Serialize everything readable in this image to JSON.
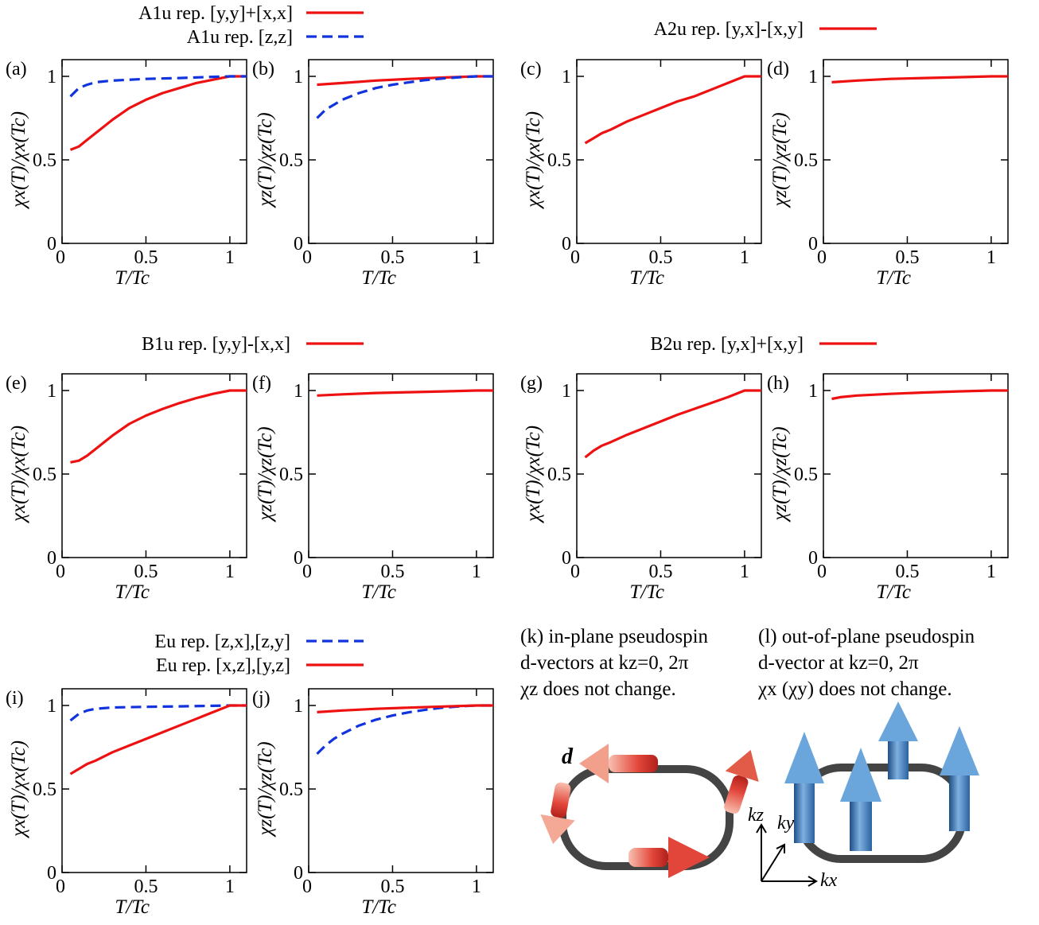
{
  "legend_groups": [
    {
      "entries": [
        {
          "text": "A1u rep. [y,y]+[x,x]",
          "color": "#ee1111",
          "dash": false
        },
        {
          "text": "A1u rep. [z,z]",
          "color": "#1133dd",
          "dash": true
        }
      ]
    },
    {
      "entries": [
        {
          "text": "A2u rep. [y,x]-[x,y]",
          "color": "#ee1111",
          "dash": false
        }
      ]
    },
    {
      "entries": [
        {
          "text": "B1u rep. [y,y]-[x,x]",
          "color": "#ee1111",
          "dash": false
        }
      ]
    },
    {
      "entries": [
        {
          "text": "B2u rep. [y,x]+[x,y]",
          "color": "#ee1111",
          "dash": false
        }
      ]
    },
    {
      "entries": [
        {
          "text": "Eu rep. [z,x],[z,y]",
          "color": "#1133dd",
          "dash": true
        },
        {
          "text": "Eu rep. [x,z],[y,z]",
          "color": "#ee1111",
          "dash": false
        }
      ]
    }
  ],
  "axis_text": {
    "x_label": "T/Tc",
    "y_label_x": "χx(T)/χx(Tc)",
    "y_label_z": "χz(T)/χz(Tc)",
    "x_ticks": [
      "0",
      "0.5",
      "1"
    ],
    "y_ticks": [
      "0",
      "0.5",
      "1"
    ]
  },
  "notes": {
    "k": [
      "(k) in-plane pseudospin",
      "d-vectors at kz=0, 2π",
      "χz does not change."
    ],
    "l": [
      "(l) out-of-plane pseudospin",
      "d-vector at kz=0, 2π",
      "χx (χy) does not change."
    ],
    "d_label": "d",
    "axis_kx": "kx",
    "axis_ky": "ky",
    "axis_kz": "kz"
  },
  "colors": {
    "red": "#ee1111",
    "blue": "#1133dd",
    "ring": "#444444",
    "arrow_red": "#e2463a",
    "arrow_blue": "#4a86c4"
  },
  "chart_data": [
    {
      "panel": "(a)",
      "type": "line",
      "ylabel": "χx(T)/χx(Tc)",
      "xlabel": "T/Tc",
      "xlim": [
        0,
        1.1
      ],
      "ylim": [
        0,
        1.1
      ],
      "series": [
        {
          "name": "A1u rep. [y,y]+[x,x]",
          "color": "red",
          "dash": false,
          "x": [
            0.05,
            0.1,
            0.15,
            0.2,
            0.3,
            0.4,
            0.5,
            0.6,
            0.7,
            0.8,
            0.9,
            1.0,
            1.1
          ],
          "y": [
            0.56,
            0.58,
            0.62,
            0.66,
            0.74,
            0.81,
            0.86,
            0.9,
            0.93,
            0.96,
            0.98,
            1.0,
            1.0
          ]
        },
        {
          "name": "A1u rep. [z,z]",
          "color": "blue",
          "dash": true,
          "x": [
            0.05,
            0.1,
            0.15,
            0.2,
            0.3,
            0.5,
            0.7,
            0.9,
            1.0,
            1.1
          ],
          "y": [
            0.88,
            0.93,
            0.95,
            0.965,
            0.975,
            0.985,
            0.99,
            0.997,
            1.0,
            1.0
          ]
        }
      ]
    },
    {
      "panel": "(b)",
      "type": "line",
      "ylabel": "χz(T)/χz(Tc)",
      "xlabel": "T/Tc",
      "xlim": [
        0,
        1.1
      ],
      "ylim": [
        0,
        1.1
      ],
      "series": [
        {
          "name": "A1u rep. [y,y]+[x,x]",
          "color": "red",
          "dash": false,
          "x": [
            0.05,
            0.2,
            0.4,
            0.6,
            0.8,
            1.0,
            1.1
          ],
          "y": [
            0.95,
            0.96,
            0.975,
            0.985,
            0.993,
            1.0,
            1.0
          ]
        },
        {
          "name": "A1u rep. [z,z]",
          "color": "blue",
          "dash": true,
          "x": [
            0.05,
            0.1,
            0.15,
            0.2,
            0.3,
            0.4,
            0.5,
            0.6,
            0.7,
            0.8,
            0.9,
            1.0,
            1.1
          ],
          "y": [
            0.75,
            0.8,
            0.83,
            0.86,
            0.9,
            0.93,
            0.95,
            0.965,
            0.978,
            0.987,
            0.995,
            1.0,
            1.0
          ]
        }
      ]
    },
    {
      "panel": "(c)",
      "type": "line",
      "ylabel": "χx(T)/χx(Tc)",
      "xlabel": "T/Tc",
      "xlim": [
        0,
        1.1
      ],
      "ylim": [
        0,
        1.1
      ],
      "series": [
        {
          "name": "A2u rep. [y,x]-[x,y]",
          "color": "red",
          "dash": false,
          "x": [
            0.05,
            0.1,
            0.15,
            0.2,
            0.3,
            0.4,
            0.5,
            0.6,
            0.7,
            0.8,
            0.9,
            1.0,
            1.1
          ],
          "y": [
            0.6,
            0.63,
            0.66,
            0.68,
            0.73,
            0.77,
            0.81,
            0.85,
            0.88,
            0.92,
            0.96,
            1.0,
            1.0
          ]
        }
      ]
    },
    {
      "panel": "(d)",
      "type": "line",
      "ylabel": "χz(T)/χz(Tc)",
      "xlabel": "T/Tc",
      "xlim": [
        0,
        1.1
      ],
      "ylim": [
        0,
        1.1
      ],
      "series": [
        {
          "name": "A2u rep. [y,x]-[x,y]",
          "color": "red",
          "dash": false,
          "x": [
            0.05,
            0.2,
            0.4,
            0.6,
            0.8,
            1.0,
            1.1
          ],
          "y": [
            0.965,
            0.975,
            0.985,
            0.99,
            0.995,
            1.0,
            1.0
          ]
        }
      ]
    },
    {
      "panel": "(e)",
      "type": "line",
      "ylabel": "χx(T)/χx(Tc)",
      "xlabel": "T/Tc",
      "xlim": [
        0,
        1.1
      ],
      "ylim": [
        0,
        1.1
      ],
      "series": [
        {
          "name": "B1u rep. [y,y]-[x,x]",
          "color": "red",
          "dash": false,
          "x": [
            0.05,
            0.1,
            0.15,
            0.2,
            0.3,
            0.4,
            0.5,
            0.6,
            0.7,
            0.8,
            0.9,
            1.0,
            1.1
          ],
          "y": [
            0.57,
            0.58,
            0.61,
            0.65,
            0.73,
            0.8,
            0.85,
            0.89,
            0.925,
            0.955,
            0.98,
            1.0,
            1.0
          ]
        }
      ]
    },
    {
      "panel": "(f)",
      "type": "line",
      "ylabel": "χz(T)/χz(Tc)",
      "xlabel": "T/Tc",
      "xlim": [
        0,
        1.1
      ],
      "ylim": [
        0,
        1.1
      ],
      "series": [
        {
          "name": "B1u rep. [y,y]-[x,x]",
          "color": "red",
          "dash": false,
          "x": [
            0.05,
            0.2,
            0.4,
            0.6,
            0.8,
            1.0,
            1.1
          ],
          "y": [
            0.97,
            0.977,
            0.985,
            0.99,
            0.995,
            1.0,
            1.0
          ]
        }
      ]
    },
    {
      "panel": "(g)",
      "type": "line",
      "ylabel": "χx(T)/χx(Tc)",
      "xlabel": "T/Tc",
      "xlim": [
        0,
        1.1
      ],
      "ylim": [
        0,
        1.1
      ],
      "series": [
        {
          "name": "B2u rep. [y,x]+[x,y]",
          "color": "red",
          "dash": false,
          "x": [
            0.05,
            0.1,
            0.15,
            0.2,
            0.3,
            0.4,
            0.5,
            0.6,
            0.7,
            0.8,
            0.9,
            1.0,
            1.1
          ],
          "y": [
            0.6,
            0.64,
            0.67,
            0.69,
            0.735,
            0.775,
            0.815,
            0.855,
            0.89,
            0.925,
            0.96,
            1.0,
            1.0
          ]
        }
      ]
    },
    {
      "panel": "(h)",
      "type": "line",
      "ylabel": "χz(T)/χz(Tc)",
      "xlabel": "T/Tc",
      "xlim": [
        0,
        1.1
      ],
      "ylim": [
        0,
        1.1
      ],
      "series": [
        {
          "name": "B2u rep. [y,x]+[x,y]",
          "color": "red",
          "dash": false,
          "x": [
            0.05,
            0.1,
            0.2,
            0.4,
            0.6,
            0.8,
            1.0,
            1.1
          ],
          "y": [
            0.95,
            0.96,
            0.97,
            0.98,
            0.988,
            0.995,
            1.0,
            1.0
          ]
        }
      ]
    },
    {
      "panel": "(i)",
      "type": "line",
      "ylabel": "χx(T)/χx(Tc)",
      "xlabel": "T/Tc",
      "xlim": [
        0,
        1.1
      ],
      "ylim": [
        0,
        1.1
      ],
      "series": [
        {
          "name": "Eu rep. [z,x],[z,y]",
          "color": "blue",
          "dash": true,
          "x": [
            0.05,
            0.1,
            0.15,
            0.2,
            0.3,
            0.5,
            0.7,
            0.9,
            1.0,
            1.1
          ],
          "y": [
            0.91,
            0.95,
            0.97,
            0.98,
            0.988,
            0.992,
            0.995,
            0.998,
            1.0,
            1.0
          ]
        },
        {
          "name": "Eu rep. [x,z],[y,z]",
          "color": "red",
          "dash": false,
          "x": [
            0.05,
            0.1,
            0.15,
            0.2,
            0.3,
            0.4,
            0.5,
            0.6,
            0.7,
            0.8,
            0.9,
            1.0,
            1.1
          ],
          "y": [
            0.59,
            0.62,
            0.65,
            0.67,
            0.72,
            0.76,
            0.8,
            0.84,
            0.88,
            0.92,
            0.96,
            1.0,
            1.0
          ]
        }
      ]
    },
    {
      "panel": "(j)",
      "type": "line",
      "ylabel": "χz(T)/χz(Tc)",
      "xlabel": "T/Tc",
      "xlim": [
        0,
        1.1
      ],
      "ylim": [
        0,
        1.1
      ],
      "series": [
        {
          "name": "Eu rep. [z,x],[z,y]",
          "color": "blue",
          "dash": true,
          "x": [
            0.05,
            0.1,
            0.15,
            0.2,
            0.3,
            0.4,
            0.5,
            0.6,
            0.7,
            0.8,
            0.9,
            1.0,
            1.1
          ],
          "y": [
            0.71,
            0.76,
            0.8,
            0.83,
            0.88,
            0.915,
            0.94,
            0.96,
            0.975,
            0.987,
            0.995,
            1.0,
            1.0
          ]
        },
        {
          "name": "Eu rep. [x,z],[y,z]",
          "color": "red",
          "dash": false,
          "x": [
            0.05,
            0.2,
            0.4,
            0.6,
            0.8,
            1.0,
            1.1
          ],
          "y": [
            0.96,
            0.97,
            0.98,
            0.987,
            0.994,
            1.0,
            1.0
          ]
        }
      ]
    }
  ]
}
